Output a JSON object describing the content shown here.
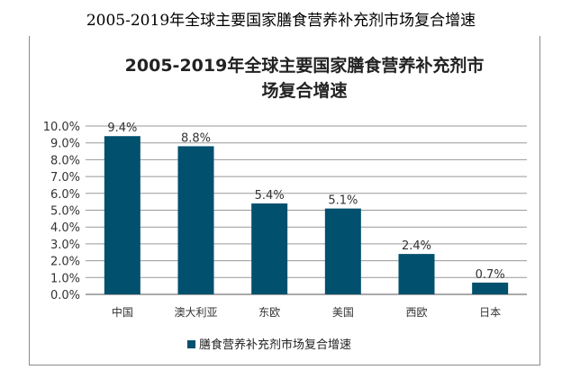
{
  "caption": "2005-2019年全球主要国家膳食营养补充剂市场复合增速",
  "chart_data": {
    "type": "bar",
    "title_lines": [
      "2005-2019年全球主要国家膳食营养补充剂市",
      "场复合增速"
    ],
    "categories": [
      "中国",
      "澳大利亚",
      "东欧",
      "美国",
      "西欧",
      "日本"
    ],
    "series": [
      {
        "name": "膳食营养补充剂市场复合增速",
        "values": [
          9.4,
          8.8,
          5.4,
          5.1,
          2.4,
          0.7
        ]
      }
    ],
    "data_labels": [
      "9.4%",
      "8.8%",
      "5.4%",
      "5.1%",
      "2.4%",
      "0.7%"
    ],
    "yticks": [
      "0.0%",
      "1.0%",
      "2.0%",
      "3.0%",
      "4.0%",
      "5.0%",
      "6.0%",
      "7.0%",
      "8.0%",
      "9.0%",
      "10.0%"
    ],
    "ylim": [
      0,
      10
    ],
    "grid": true,
    "legend_position": "bottom",
    "bar_color": "#00506e"
  }
}
